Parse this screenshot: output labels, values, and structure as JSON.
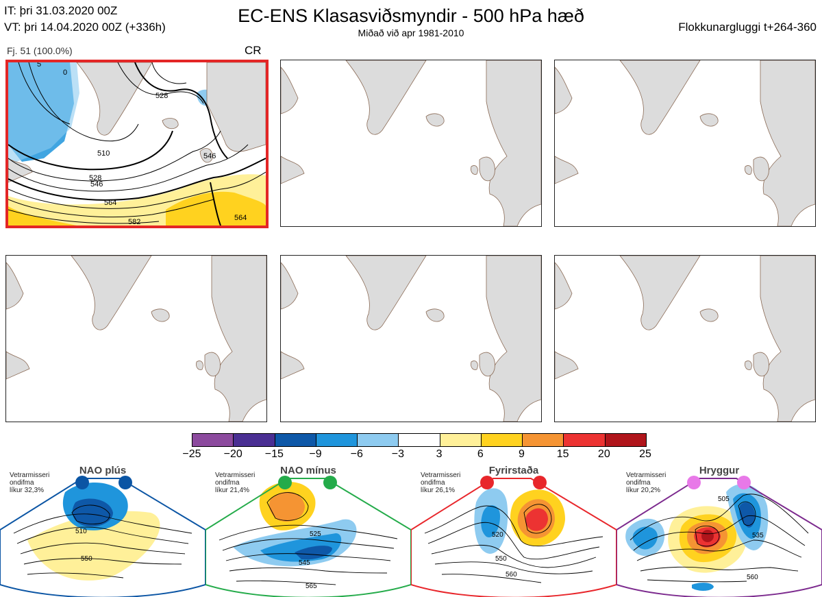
{
  "header": {
    "it_line": "IT: þri 31.03.2020 00Z",
    "vt_line": "VT: þri 14.04.2020 00Z  (+336h)",
    "title": "EC-ENS Klasasviðsmyndir - 500 hPa hæð",
    "subtitle": "Miðað við apr 1981-2010",
    "window_label": "Flokkunargluggi t+264-360"
  },
  "cluster_panel": {
    "members_label": "Fj. 51 (100.0%)",
    "regime_code": "CR",
    "contour_labels": [
      "510",
      "528",
      "546",
      "564",
      "582",
      "528",
      "546",
      "564",
      "0",
      "5"
    ]
  },
  "colorbar": {
    "ticks": [
      "−25",
      "−20",
      "−15",
      "−9",
      "−6",
      "−3",
      "3",
      "6",
      "9",
      "15",
      "20",
      "25"
    ],
    "colors": [
      "#8c4a9e",
      "#4a2f93",
      "#0e58a8",
      "#1f95dc",
      "#8ecbf0",
      "#ffffff",
      "#fff099",
      "#ffd21f",
      "#f59433",
      "#ec3332",
      "#b0151b"
    ]
  },
  "regimes": [
    {
      "name": "NAO plús",
      "info_lines": [
        "Vetrarmisseri",
        "ondifma",
        "líkur 32,3%"
      ],
      "color": "#0b55a4",
      "contour_labels": [
        "510",
        "550"
      ]
    },
    {
      "name": "NAO mínus",
      "info_lines": [
        "Vetrarmisseri",
        "ondifma",
        "líkur 21,4%"
      ],
      "color": "#24ab4a",
      "contour_labels": [
        "525",
        "545",
        "565"
      ]
    },
    {
      "name": "Fyrirstaða",
      "info_lines": [
        "Vetrarmisseri",
        "ondifma",
        "líkur 26,1%"
      ],
      "color": "#e8262b",
      "contour_labels": [
        "520",
        "550",
        "560"
      ]
    },
    {
      "name": "Hryggur",
      "info_lines": [
        "Vetrarmisseri",
        "ondifma",
        "líkur 20,2%"
      ],
      "color": "#7c2a8e",
      "contour_labels": [
        "505",
        "535",
        "560"
      ]
    }
  ]
}
